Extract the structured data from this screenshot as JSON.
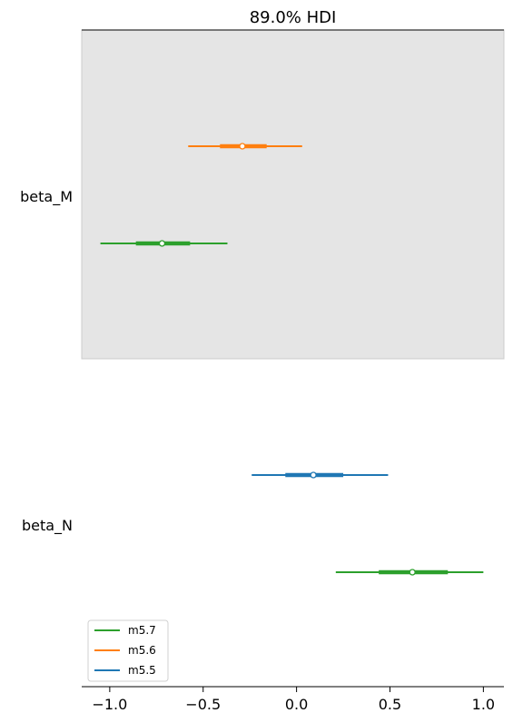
{
  "chart_data": {
    "type": "forest",
    "title": "89.0% HDI",
    "xlim": [
      -1.15,
      1.11
    ],
    "xticks": [
      {
        "value": -1.0,
        "label": "−1.0"
      },
      {
        "value": -0.5,
        "label": "−0.5"
      },
      {
        "value": 0.0,
        "label": "0.0"
      },
      {
        "value": 0.5,
        "label": "0.5"
      },
      {
        "value": 1.0,
        "label": "1.0"
      }
    ],
    "parameters": [
      "beta_M",
      "beta_N"
    ],
    "shaded_parameter": "beta_M",
    "shade_color": "#e5e5e5",
    "models": [
      {
        "name": "m5.7",
        "color": "#2ca02c"
      },
      {
        "name": "m5.6",
        "color": "#ff7f0e"
      },
      {
        "name": "m5.5",
        "color": "#1f77b4"
      }
    ],
    "estimates": [
      {
        "parameter": "beta_M",
        "model": "m5.6",
        "hdi": [
          -0.58,
          0.03
        ],
        "iqr": [
          -0.41,
          -0.16
        ],
        "median": -0.29
      },
      {
        "parameter": "beta_M",
        "model": "m5.7",
        "hdi": [
          -1.05,
          -0.37
        ],
        "iqr": [
          -0.86,
          -0.57
        ],
        "median": -0.72
      },
      {
        "parameter": "beta_N",
        "model": "m5.5",
        "hdi": [
          -0.24,
          0.49
        ],
        "iqr": [
          -0.06,
          0.25
        ],
        "median": 0.09
      },
      {
        "parameter": "beta_N",
        "model": "m5.7",
        "hdi": [
          0.21,
          1.0
        ],
        "iqr": [
          0.44,
          0.81
        ],
        "median": 0.62
      }
    ]
  }
}
